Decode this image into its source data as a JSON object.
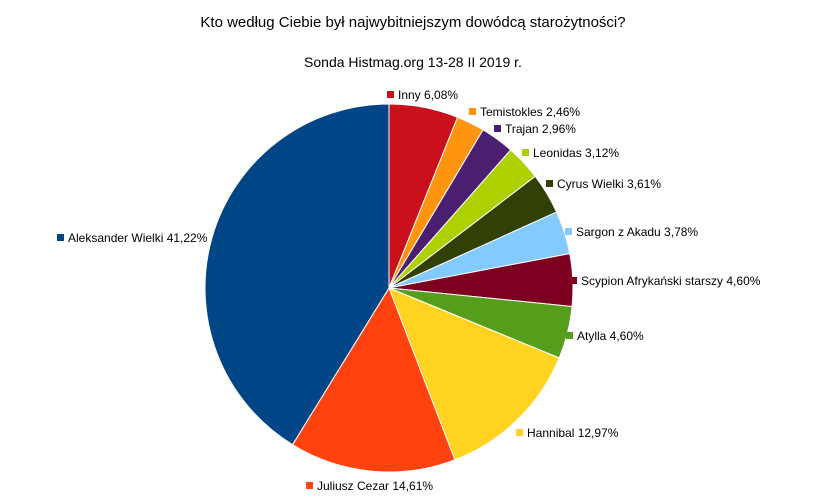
{
  "chart_data": {
    "type": "pie",
    "title": "Kto według Ciebie był najwybitniejszym dowódcą starożytności?",
    "subtitle": "Sonda Histmag.org 13-28 II 2019 r.",
    "slices": [
      {
        "name": "Inny",
        "label": "Inny 6,08%",
        "value": 6.08,
        "color": "#c9101c"
      },
      {
        "name": "Temistokles",
        "label": "Temistokles 2,46%",
        "value": 2.46,
        "color": "#ff950e"
      },
      {
        "name": "Trajan",
        "label": "Trajan 2,96%",
        "value": 2.96,
        "color": "#4b1f6f"
      },
      {
        "name": "Leonidas",
        "label": "Leonidas 3,12%",
        "value": 3.12,
        "color": "#aecf00"
      },
      {
        "name": "Cyrus Wielki",
        "label": "Cyrus Wielki 3,61%",
        "value": 3.61,
        "color": "#314004"
      },
      {
        "name": "Sargon z Akadu",
        "label": "Sargon z Akadu 3,78%",
        "value": 3.78,
        "color": "#83caff"
      },
      {
        "name": "Scypion Afrykański starszy",
        "label": "Scypion Afrykański starszy 4,60%",
        "value": 4.6,
        "color": "#7e0021"
      },
      {
        "name": "Atylla",
        "label": "Atylla 4,60%",
        "value": 4.6,
        "color": "#579d1c"
      },
      {
        "name": "Hannibal",
        "label": "Hannibal  12,97%",
        "value": 12.97,
        "color": "#ffd320"
      },
      {
        "name": "Juliusz Cezar",
        "label": "Juliusz Cezar  14,61%",
        "value": 14.61,
        "color": "#ff420e"
      },
      {
        "name": "Aleksander Wielki",
        "label": "Aleksander Wielki  41,22%",
        "value": 41.22,
        "color": "#004586"
      }
    ]
  }
}
